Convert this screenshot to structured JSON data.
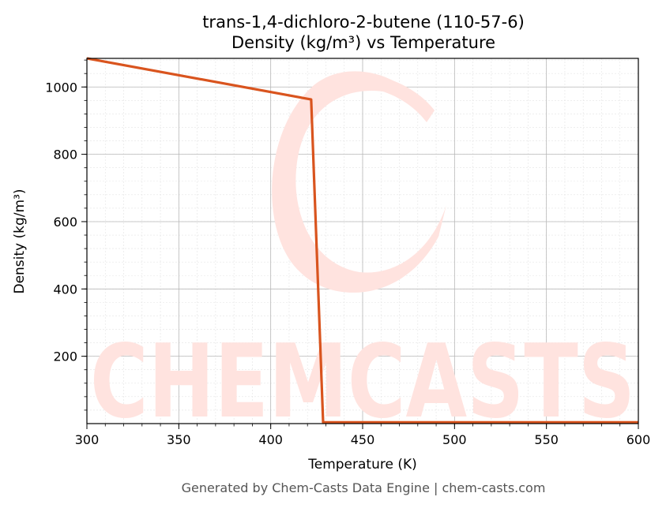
{
  "chart_data": {
    "type": "line",
    "title_line1": "trans-1,4-dichloro-2-butene (110-57-6)",
    "title_line2": "Density (kg/m³) vs Temperature",
    "xlabel": "Temperature (K)",
    "ylabel": "Density (kg/m³)",
    "xlim": [
      300,
      600
    ],
    "ylim": [
      0,
      1085
    ],
    "xticks": [
      300,
      350,
      400,
      450,
      500,
      550,
      600
    ],
    "yticks": [
      200,
      400,
      600,
      800,
      1000
    ],
    "grid": true,
    "series": [
      {
        "color": "#d9541e",
        "x": [
          300,
          422,
          428.5,
          600
        ],
        "y": [
          1085,
          963,
          4,
          4
        ]
      }
    ]
  },
  "watermark": {
    "text": "CHEMCASTS",
    "color": "#ffe3df"
  },
  "footer": "Generated by Chem-Casts Data Engine | chem-casts.com"
}
